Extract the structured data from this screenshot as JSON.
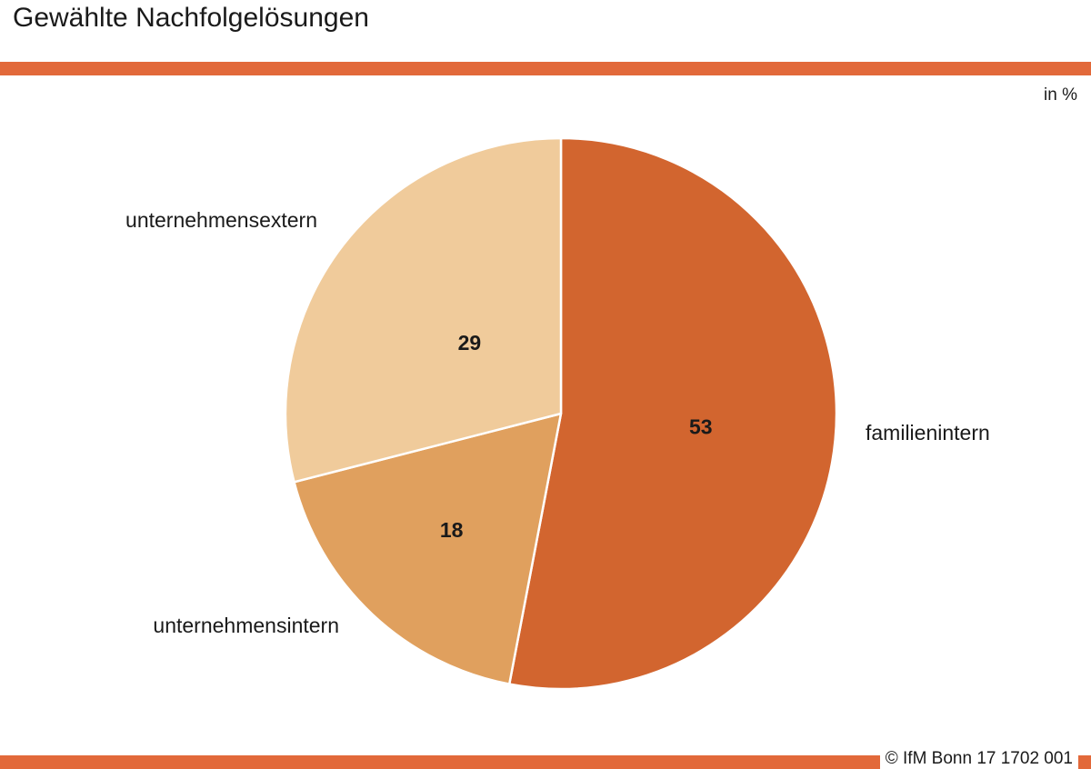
{
  "header": {
    "title": "Gewählte Nachfolgelösungen",
    "unit": "in %"
  },
  "footer": {
    "copyright": "© IfM Bonn 17 1702 001"
  },
  "colors": {
    "rule": "#E2693A",
    "slice_border": "#ffffff"
  },
  "chart_data": {
    "type": "pie",
    "title": "Gewählte Nachfolgelösungen",
    "unit": "in %",
    "start": "12 o'clock",
    "direction": "clockwise",
    "slices": [
      {
        "label": "familienintern",
        "value": 53,
        "color": "#D2652F"
      },
      {
        "label": "unternehmensintern",
        "value": 18,
        "color": "#E0A05E"
      },
      {
        "label": "unternehmensextern",
        "value": 29,
        "color": "#F0CB9B"
      }
    ]
  }
}
